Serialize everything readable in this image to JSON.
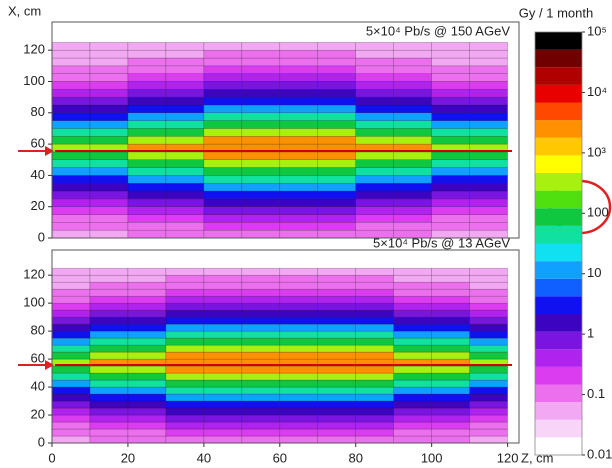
{
  "chart_data": [
    {
      "type": "heatmap",
      "annotation": "5×10⁴ Pb/s @ 150 AGeV",
      "ylabel": "X, cm",
      "xlim": [
        0,
        123
      ],
      "ylim": [
        0,
        138
      ],
      "yticks": [
        0,
        20,
        40,
        60,
        80,
        100,
        120
      ],
      "xbins": [
        0,
        10,
        20,
        30,
        40,
        50,
        60,
        70,
        80,
        90,
        100,
        110,
        120
      ],
      "ybins": [
        0,
        5,
        10,
        15,
        20,
        25,
        30,
        35,
        40,
        45,
        50,
        55,
        60,
        65,
        70,
        75,
        80,
        85,
        90,
        95,
        100,
        105,
        110,
        115,
        120,
        125
      ],
      "z": [
        [
          0.05,
          0.05,
          0.08,
          0.08,
          0.12,
          0.12,
          0.12,
          0.12,
          0.08,
          0.08,
          0.05,
          0.05
        ],
        [
          0.08,
          0.08,
          0.12,
          0.12,
          0.2,
          0.2,
          0.2,
          0.2,
          0.12,
          0.12,
          0.08,
          0.08
        ],
        [
          0.12,
          0.12,
          0.2,
          0.2,
          0.3,
          0.3,
          0.3,
          0.3,
          0.2,
          0.2,
          0.12,
          0.12
        ],
        [
          0.2,
          0.2,
          0.3,
          0.3,
          0.6,
          0.6,
          0.6,
          0.6,
          0.3,
          0.3,
          0.2,
          0.2
        ],
        [
          0.3,
          0.3,
          0.6,
          0.6,
          1.5,
          1.5,
          1.5,
          1.5,
          0.6,
          0.6,
          0.3,
          0.3
        ],
        [
          0.6,
          0.6,
          1.5,
          1.5,
          4,
          4,
          4,
          4,
          1.5,
          1.5,
          0.6,
          0.6
        ],
        [
          1.5,
          1.5,
          4,
          4,
          12,
          12,
          12,
          12,
          4,
          4,
          1.5,
          1.5
        ],
        [
          4,
          4,
          12,
          12,
          40,
          40,
          40,
          40,
          12,
          12,
          4,
          4
        ],
        [
          12,
          12,
          40,
          40,
          120,
          120,
          120,
          120,
          40,
          40,
          12,
          12
        ],
        [
          40,
          40,
          120,
          120,
          400,
          400,
          400,
          400,
          120,
          120,
          40,
          40
        ],
        [
          120,
          120,
          400,
          400,
          2000,
          2000,
          2000,
          2000,
          400,
          400,
          120,
          120
        ],
        [
          400,
          400,
          2000,
          2000,
          2000,
          2000,
          2000,
          2000,
          2000,
          2000,
          400,
          400
        ],
        [
          120,
          120,
          400,
          400,
          2000,
          2000,
          2000,
          2000,
          400,
          400,
          120,
          120
        ],
        [
          40,
          40,
          120,
          120,
          400,
          400,
          400,
          400,
          120,
          120,
          40,
          40
        ],
        [
          12,
          12,
          40,
          40,
          120,
          120,
          120,
          120,
          40,
          40,
          12,
          12
        ],
        [
          4,
          4,
          12,
          12,
          40,
          40,
          40,
          40,
          12,
          12,
          4,
          4
        ],
        [
          1.5,
          1.5,
          4,
          4,
          12,
          12,
          12,
          12,
          4,
          4,
          1.5,
          1.5
        ],
        [
          0.6,
          0.6,
          1.5,
          1.5,
          4,
          4,
          4,
          4,
          1.5,
          1.5,
          0.6,
          0.6
        ],
        [
          0.3,
          0.3,
          0.6,
          0.6,
          1.5,
          1.5,
          1.5,
          1.5,
          0.6,
          0.6,
          0.3,
          0.3
        ],
        [
          0.2,
          0.2,
          0.3,
          0.3,
          0.6,
          0.6,
          0.6,
          0.6,
          0.3,
          0.3,
          0.2,
          0.2
        ],
        [
          0.12,
          0.12,
          0.2,
          0.2,
          0.3,
          0.3,
          0.3,
          0.3,
          0.2,
          0.2,
          0.12,
          0.12
        ],
        [
          0.08,
          0.08,
          0.12,
          0.12,
          0.2,
          0.2,
          0.2,
          0.2,
          0.12,
          0.12,
          0.08,
          0.08
        ],
        [
          0.05,
          0.05,
          0.08,
          0.08,
          0.12,
          0.12,
          0.12,
          0.12,
          0.08,
          0.08,
          0.05,
          0.05
        ],
        [
          0.05,
          0.05,
          0.05,
          0.05,
          0.08,
          0.08,
          0.08,
          0.08,
          0.05,
          0.05,
          0.05,
          0.05
        ],
        [
          0.05,
          0.05,
          0.05,
          0.05,
          0.05,
          0.05,
          0.05,
          0.05,
          0.05,
          0.05,
          0.05,
          0.05
        ]
      ]
    },
    {
      "type": "heatmap",
      "annotation": "5×10⁴ Pb/s @ 13 AGeV",
      "xlabel": "Z, cm",
      "xlim": [
        0,
        123
      ],
      "ylim": [
        0,
        138
      ],
      "yticks": [
        0,
        20,
        40,
        60,
        80,
        100,
        120
      ],
      "xticks": [
        0,
        20,
        40,
        60,
        80,
        100,
        120
      ],
      "xbins": [
        0,
        10,
        20,
        30,
        40,
        50,
        60,
        70,
        80,
        90,
        100,
        110,
        120
      ],
      "ybins": [
        0,
        5,
        10,
        15,
        20,
        25,
        30,
        35,
        40,
        45,
        50,
        55,
        60,
        65,
        70,
        75,
        80,
        85,
        90,
        95,
        100,
        105,
        110,
        115,
        120,
        125
      ],
      "z": [
        [
          0.05,
          0.08,
          0.08,
          0.12,
          0.12,
          0.12,
          0.12,
          0.12,
          0.12,
          0.08,
          0.08,
          0.05
        ],
        [
          0.08,
          0.12,
          0.12,
          0.2,
          0.2,
          0.2,
          0.2,
          0.2,
          0.2,
          0.12,
          0.12,
          0.08
        ],
        [
          0.12,
          0.2,
          0.2,
          0.3,
          0.3,
          0.3,
          0.3,
          0.3,
          0.3,
          0.2,
          0.2,
          0.12
        ],
        [
          0.2,
          0.3,
          0.3,
          0.6,
          0.6,
          0.6,
          0.6,
          0.6,
          0.6,
          0.3,
          0.3,
          0.2
        ],
        [
          0.3,
          0.6,
          0.6,
          1.5,
          1.5,
          1.5,
          1.5,
          1.5,
          1.5,
          0.6,
          0.6,
          0.3
        ],
        [
          0.6,
          1.5,
          1.5,
          4,
          4,
          4,
          4,
          4,
          4,
          1.5,
          1.5,
          0.6
        ],
        [
          1.5,
          4,
          4,
          12,
          12,
          12,
          12,
          12,
          12,
          4,
          4,
          1.5
        ],
        [
          4,
          12,
          12,
          40,
          40,
          40,
          40,
          40,
          40,
          12,
          12,
          4
        ],
        [
          12,
          40,
          40,
          120,
          120,
          120,
          120,
          120,
          120,
          40,
          40,
          12
        ],
        [
          40,
          120,
          120,
          400,
          400,
          400,
          400,
          400,
          400,
          120,
          120,
          40
        ],
        [
          120,
          400,
          400,
          2000,
          2000,
          2000,
          2000,
          2000,
          2000,
          400,
          400,
          120
        ],
        [
          400,
          2000,
          2000,
          2000,
          2000,
          2000,
          2000,
          2000,
          2000,
          2000,
          2000,
          400
        ],
        [
          120,
          400,
          400,
          2000,
          2000,
          2000,
          2000,
          2000,
          2000,
          400,
          400,
          120
        ],
        [
          40,
          120,
          120,
          400,
          400,
          400,
          400,
          400,
          400,
          120,
          120,
          40
        ],
        [
          12,
          40,
          40,
          120,
          120,
          120,
          120,
          120,
          120,
          40,
          40,
          12
        ],
        [
          4,
          12,
          12,
          40,
          40,
          40,
          40,
          40,
          40,
          12,
          12,
          4
        ],
        [
          1.5,
          4,
          4,
          12,
          12,
          12,
          12,
          12,
          12,
          4,
          4,
          1.5
        ],
        [
          0.6,
          1.5,
          1.5,
          4,
          4,
          4,
          4,
          4,
          4,
          1.5,
          1.5,
          0.6
        ],
        [
          0.3,
          0.6,
          0.6,
          1.5,
          1.5,
          1.5,
          1.5,
          1.5,
          1.5,
          0.6,
          0.6,
          0.3
        ],
        [
          0.2,
          0.3,
          0.3,
          0.6,
          0.6,
          0.6,
          0.6,
          0.6,
          0.6,
          0.3,
          0.3,
          0.2
        ],
        [
          0.12,
          0.2,
          0.2,
          0.3,
          0.3,
          0.3,
          0.3,
          0.3,
          0.3,
          0.2,
          0.2,
          0.12
        ],
        [
          0.08,
          0.12,
          0.12,
          0.2,
          0.2,
          0.2,
          0.2,
          0.2,
          0.2,
          0.12,
          0.12,
          0.08
        ],
        [
          0.05,
          0.08,
          0.08,
          0.12,
          0.12,
          0.12,
          0.12,
          0.12,
          0.12,
          0.08,
          0.08,
          0.05
        ],
        [
          0.05,
          0.05,
          0.05,
          0.08,
          0.08,
          0.08,
          0.08,
          0.08,
          0.08,
          0.05,
          0.05,
          0.05
        ],
        [
          0.05,
          0.05,
          0.05,
          0.05,
          0.05,
          0.05,
          0.05,
          0.05,
          0.05,
          0.05,
          0.05,
          0.05
        ]
      ]
    }
  ],
  "colorbar": {
    "title": "Gy / 1 month",
    "scale": "log",
    "clim": [
      0.01,
      100000
    ],
    "ticks": [
      {
        "value": 100000,
        "label": "10⁵"
      },
      {
        "value": 10000,
        "label": "10⁴"
      },
      {
        "value": 1000,
        "label": "10³"
      },
      100,
      10,
      1,
      0.1,
      0.01
    ]
  }
}
